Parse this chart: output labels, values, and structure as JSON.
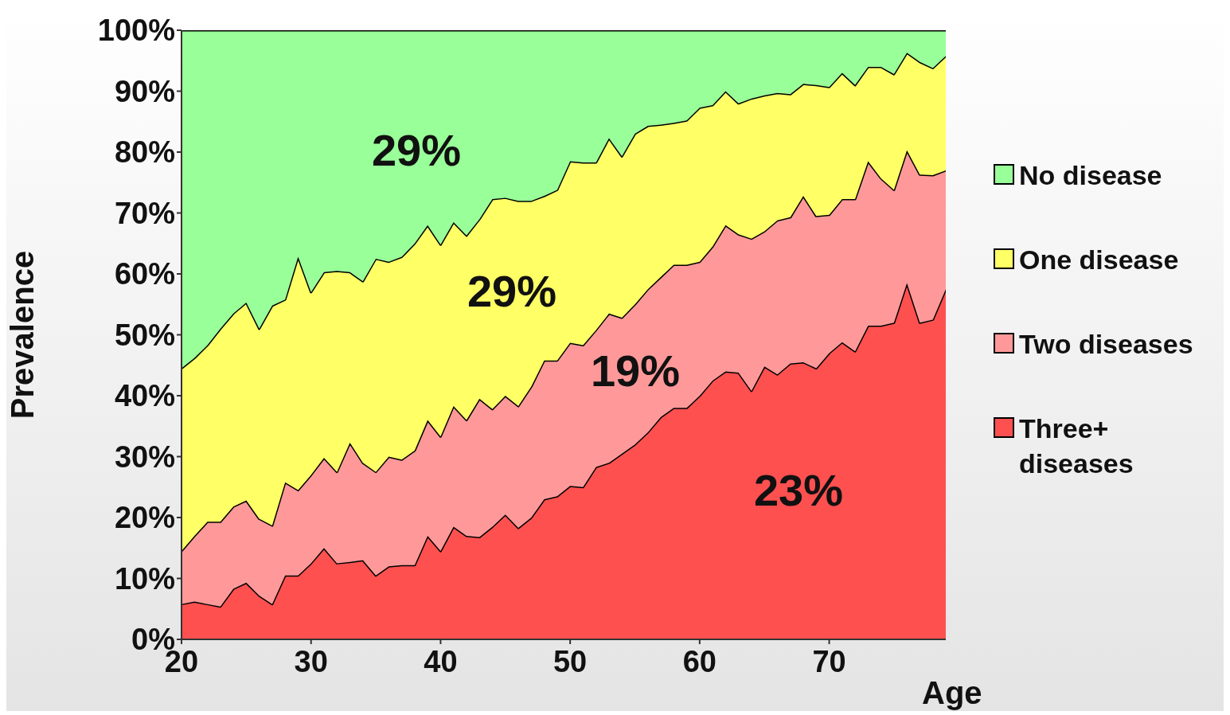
{
  "chart_data": {
    "type": "area",
    "stacked": true,
    "legend": "right",
    "ylabel": "Prevalence",
    "xlabel": "Age",
    "x": [
      20,
      21,
      22,
      23,
      24,
      25,
      26,
      27,
      28,
      29,
      30,
      31,
      32,
      33,
      34,
      35,
      36,
      37,
      38,
      39,
      40,
      41,
      42,
      43,
      44,
      45,
      46,
      47,
      48,
      49,
      50,
      51,
      52,
      53,
      54,
      55,
      56,
      57,
      58,
      59,
      60,
      61,
      62,
      63,
      64,
      65,
      66,
      67,
      68,
      69,
      70,
      71,
      72,
      73,
      74,
      75,
      76,
      77,
      78,
      79
    ],
    "xlim": [
      20,
      79
    ],
    "xticks": [
      20,
      30,
      40,
      50,
      60,
      70
    ],
    "ylim": [
      0,
      100
    ],
    "yticks": [
      {
        "value": 0,
        "label": "0%"
      },
      {
        "value": 10,
        "label": "10%"
      },
      {
        "value": 20,
        "label": "20%"
      },
      {
        "value": 30,
        "label": "30%"
      },
      {
        "value": 40,
        "label": "40%"
      },
      {
        "value": 50,
        "label": "50%"
      },
      {
        "value": 60,
        "label": "60%"
      },
      {
        "value": 70,
        "label": "70%"
      },
      {
        "value": 80,
        "label": "80%"
      },
      {
        "value": 90,
        "label": "90%"
      },
      {
        "value": 100,
        "label": "100%"
      }
    ],
    "series": [
      {
        "name": "Three+ diseases",
        "color": "#ff5050",
        "values": [
          5.8,
          6.2,
          5.8,
          5.4,
          8.3,
          9.3,
          7.2,
          5.8,
          10.5,
          10.5,
          12.5,
          15,
          12.5,
          12.7,
          13,
          10.5,
          12,
          12.2,
          12.2,
          17,
          14.5,
          18.5,
          17,
          16.8,
          18.5,
          20.5,
          18.3,
          20,
          23,
          23.5,
          25.2,
          25,
          28.3,
          29,
          30.5,
          32,
          34,
          36.5,
          38,
          38,
          40,
          42.5,
          44,
          43.8,
          40.8,
          44.8,
          43.5,
          45.3,
          45.5,
          44.5,
          47,
          48.8,
          47.3,
          51.5,
          51.5,
          52,
          58.5,
          52,
          52.5,
          57.5
        ]
      },
      {
        "name": "Two diseases",
        "color": "#ff9999",
        "values": [
          8.7,
          10.8,
          13.5,
          13.9,
          13.5,
          13.5,
          12.6,
          12.9,
          15.3,
          14,
          14.5,
          14.8,
          15,
          19.6,
          16,
          17,
          18,
          17.3,
          18.8,
          19,
          18.8,
          19.8,
          19,
          22.7,
          19.3,
          19.5,
          20,
          21.5,
          22.8,
          22.3,
          23.5,
          23.3,
          22.5,
          24.5,
          22.3,
          23,
          23.5,
          23,
          23.5,
          23.5,
          22,
          22,
          24,
          22.7,
          25,
          22.2,
          25.3,
          24,
          27.3,
          25,
          22.7,
          23.5,
          25,
          27,
          24.2,
          21.8,
          21.8,
          24.3,
          23.7,
          19.5
        ]
      },
      {
        "name": "One disease",
        "color": "#ffff66",
        "values": [
          30,
          29.2,
          29,
          31.7,
          31.7,
          32.5,
          31.2,
          36.1,
          30,
          38.3,
          30,
          30.5,
          33,
          28,
          29.8,
          35,
          32,
          33.3,
          34,
          32,
          31.5,
          30.2,
          30.3,
          29.5,
          34.5,
          32.5,
          33.7,
          30.5,
          27,
          28,
          29.8,
          30,
          27.5,
          28.8,
          26.5,
          28,
          26.8,
          25,
          23.3,
          23.7,
          25.3,
          23.2,
          22,
          21.5,
          23,
          22.3,
          20.9,
          20.2,
          18.4,
          21.5,
          21,
          20.7,
          18.7,
          15.5,
          18.3,
          19,
          16,
          18.5,
          17.6,
          18.8
        ]
      },
      {
        "name": "No disease",
        "color": "#99ff99",
        "values": [
          55.5,
          53.8,
          51.7,
          49,
          46.5,
          44.7,
          49,
          45.2,
          44.2,
          37.2,
          43,
          39.7,
          39.5,
          39.7,
          41.2,
          37.5,
          38,
          37.2,
          35,
          32,
          35.2,
          31.5,
          33.7,
          31,
          27.7,
          27.5,
          28,
          28,
          27.2,
          26.2,
          21.5,
          21.7,
          21.7,
          17.7,
          20.7,
          17,
          15.7,
          15.5,
          15.2,
          14.8,
          12.7,
          12.3,
          10,
          12,
          11.2,
          10.7,
          10.3,
          10.5,
          8.8,
          9,
          9.3,
          7,
          9,
          6,
          6,
          7.2,
          3.7,
          5.2,
          6.2,
          4.2
        ]
      }
    ],
    "annotations": [
      "29%",
      "29%",
      "19%",
      "23%"
    ]
  }
}
